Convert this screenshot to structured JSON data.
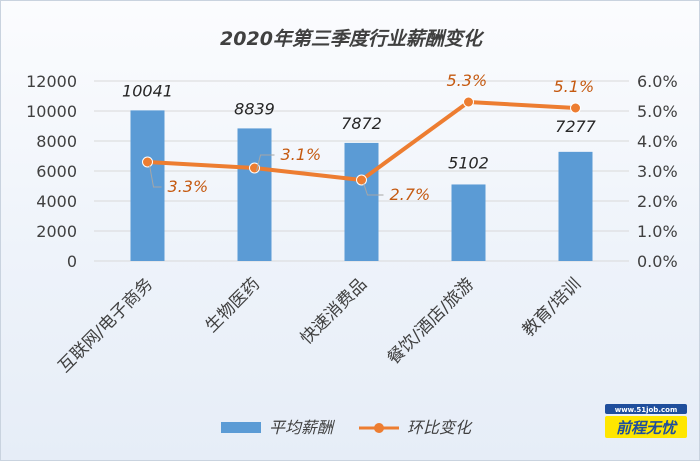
{
  "chart_data": {
    "type": "bar",
    "title": "2020年第三季度行业薪酬变化",
    "categories": [
      "互联网/电子商务",
      "生物医药",
      "快速消费品",
      "餐饮/酒店/旅游",
      "教育/培训"
    ],
    "series": [
      {
        "name": "平均薪酬",
        "type": "bar",
        "axis": "left",
        "values": [
          10041,
          8839,
          7872,
          5102,
          7277
        ],
        "labels": [
          "10041",
          "8839",
          "7872",
          "5102",
          "7277"
        ],
        "color": "#5b9bd5"
      },
      {
        "name": "环比变化",
        "type": "line",
        "axis": "right",
        "values": [
          3.3,
          3.1,
          2.7,
          5.3,
          5.1
        ],
        "labels": [
          "3.3%",
          "3.1%",
          "2.7%",
          "5.3%",
          "5.1%"
        ],
        "color": "#ed7d31"
      }
    ],
    "y_left": {
      "min": 0,
      "max": 12000,
      "ticks": [
        "0",
        "2000",
        "4000",
        "6000",
        "8000",
        "10000",
        "12000"
      ]
    },
    "y_right": {
      "min": 0,
      "max": 6,
      "ticks": [
        "0.0%",
        "1.0%",
        "2.0%",
        "3.0%",
        "4.0%",
        "5.0%",
        "6.0%"
      ]
    },
    "grid": true,
    "legend": "bottom",
    "label_text_color": "#c55a11",
    "axis_text_color": "#404040"
  },
  "watermark": {
    "url": "www.51job.com",
    "name": "前程无忧"
  }
}
